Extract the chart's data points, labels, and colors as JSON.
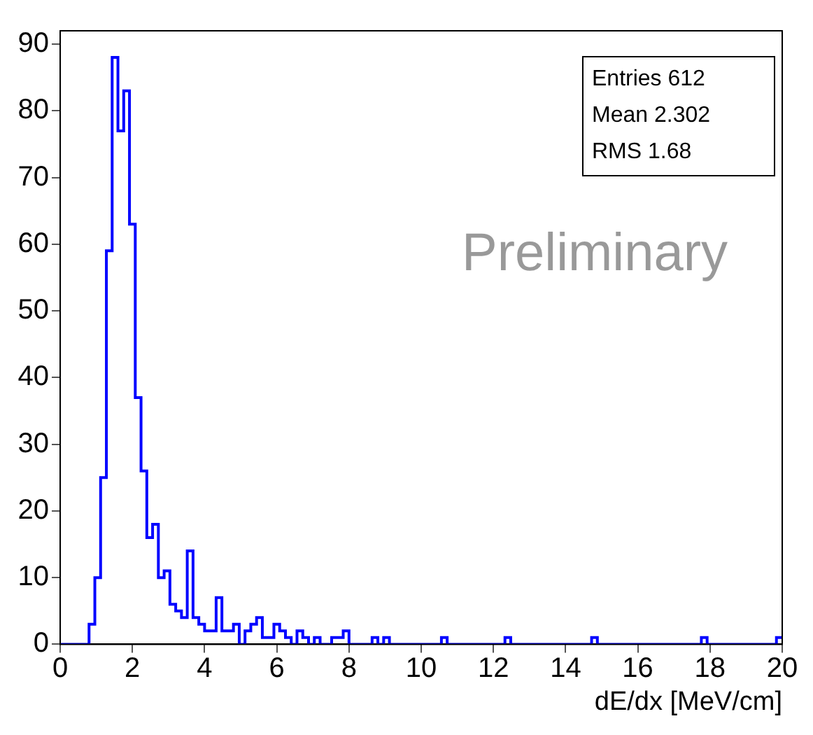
{
  "chart_data": {
    "type": "histogram",
    "xlabel": "dE/dx [MeV/cm]",
    "annotations": [
      "Entries 612",
      "Mean 2.302",
      "RMS 1.68",
      "Preliminary"
    ],
    "bins": [
      0,
      0.16,
      0.32,
      0.48,
      0.64,
      0.8,
      0.96,
      1.12,
      1.28,
      1.44,
      1.6,
      1.76,
      1.92,
      2.08,
      2.24,
      2.4,
      2.56,
      2.72,
      2.88,
      3.04,
      3.2,
      3.36,
      3.52,
      3.68,
      3.84,
      4,
      4.16,
      4.32,
      4.48,
      4.64,
      4.8,
      4.96,
      5.12,
      5.28,
      5.44,
      5.6,
      5.76,
      5.92,
      6.08,
      6.24,
      6.4,
      6.56,
      6.72,
      6.88,
      7.04,
      7.2,
      7.36,
      7.52,
      7.68,
      7.84,
      8,
      8.16,
      8.32,
      8.48,
      8.64,
      8.8,
      8.96,
      9.12,
      9.28,
      9.44,
      9.6,
      9.76,
      9.92,
      10.08,
      10.24,
      10.4,
      10.56,
      10.72,
      10.88,
      11.04,
      11.2,
      11.36,
      11.52,
      11.68,
      11.84,
      12,
      12.16,
      12.32,
      12.48,
      12.64,
      12.8,
      12.96,
      13.12,
      13.28,
      13.44,
      13.6,
      13.76,
      13.92,
      14.08,
      14.24,
      14.4,
      14.56,
      14.72,
      14.88,
      15.04,
      15.2,
      15.36,
      15.52,
      15.68,
      15.84,
      16,
      16.16,
      16.32,
      16.48,
      16.64,
      16.8,
      16.96,
      17.12,
      17.28,
      17.44,
      17.6,
      17.76,
      17.92,
      18.08,
      18.24,
      18.4,
      18.56,
      18.72,
      18.88,
      19.04,
      19.2,
      19.36,
      19.52,
      19.68,
      19.84,
      20
    ],
    "values": [
      0,
      0,
      0,
      0,
      0,
      3,
      10,
      25,
      59,
      88,
      77,
      83,
      63,
      37,
      26,
      16,
      18,
      10,
      11,
      6,
      5,
      4,
      14,
      4,
      3,
      2,
      2,
      7,
      2,
      2,
      3,
      0,
      2,
      3,
      4,
      1,
      1,
      3,
      2,
      1,
      0,
      2,
      1,
      0,
      1,
      0,
      0,
      1,
      1,
      2,
      0,
      0,
      0,
      0,
      1,
      0,
      1,
      0,
      0,
      0,
      0,
      0,
      0,
      0,
      0,
      0,
      1,
      0,
      0,
      0,
      0,
      0,
      0,
      0,
      0,
      0,
      0,
      1,
      0,
      0,
      0,
      0,
      0,
      0,
      0,
      0,
      0,
      0,
      0,
      0,
      0,
      0,
      1,
      0,
      0,
      0,
      0,
      0,
      0,
      0,
      0,
      0,
      0,
      0,
      0,
      0,
      0,
      0,
      0,
      0,
      0,
      1,
      0,
      0,
      0,
      0,
      0,
      0,
      0,
      0,
      0,
      0,
      0,
      0,
      1
    ],
    "color": "#0000ff",
    "xlim": [
      0,
      20
    ],
    "xticks": [
      0,
      2,
      4,
      6,
      8,
      10,
      12,
      14,
      16,
      18,
      20
    ],
    "ylim": [
      0,
      92
    ],
    "yticks": [
      0,
      10,
      20,
      30,
      40,
      50,
      60,
      70,
      80,
      90
    ],
    "grid": false,
    "legend": false
  }
}
